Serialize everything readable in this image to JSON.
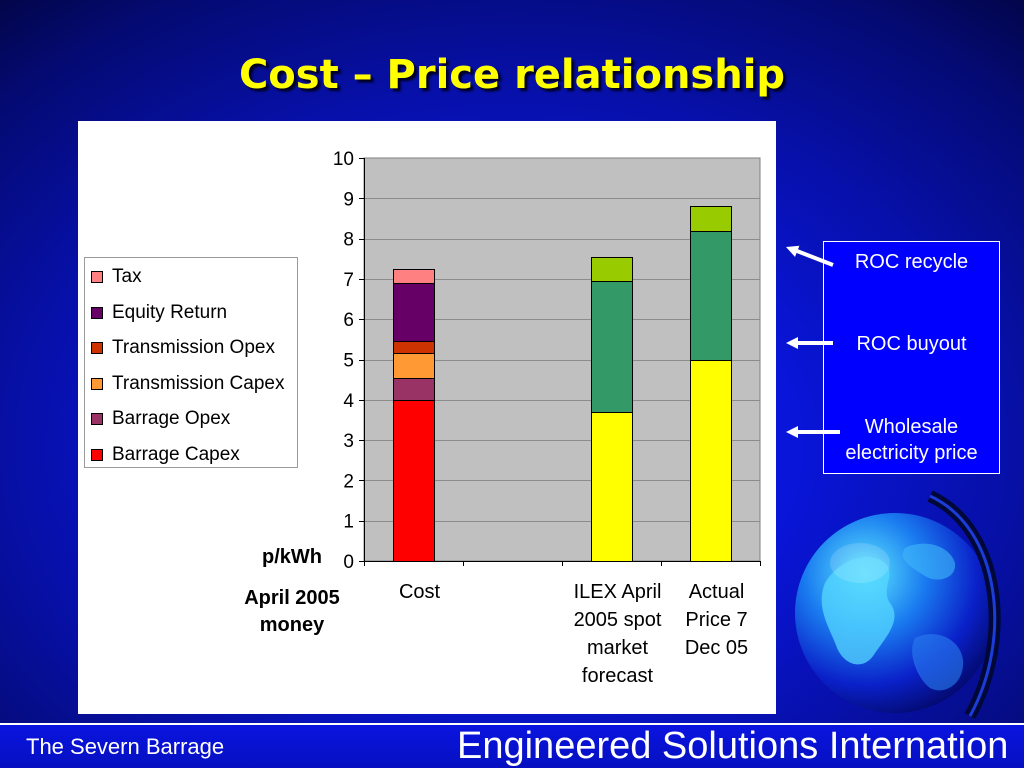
{
  "slide": {
    "title": "Cost – Price relationship",
    "footer_left": "The Severn Barrage",
    "footer_right": "Engineered Solutions Internation"
  },
  "colors": {
    "title": "#FFFF00",
    "annotation_box": "#0000FF"
  },
  "chart_data": {
    "type": "bar",
    "stacked": true,
    "categories": [
      "Cost",
      "",
      "ILEX April 2005 spot market forecast",
      "Actual Price 7 Dec 05"
    ],
    "ylim": [
      0,
      10
    ],
    "yticks": [
      0,
      1,
      2,
      3,
      4,
      5,
      6,
      7,
      8,
      9,
      10
    ],
    "ylabel": "p/kWh",
    "ylabel_note": "April 2005 money",
    "grid": true,
    "legend": "left",
    "series": [
      {
        "name": "Barrage Capex",
        "color": "#FF0000",
        "values": [
          4.0,
          null,
          null,
          null
        ],
        "in_legend": true
      },
      {
        "name": "Barrage Opex",
        "color": "#993366",
        "values": [
          0.55,
          null,
          null,
          null
        ],
        "in_legend": true
      },
      {
        "name": "Transmission Capex",
        "color": "#FF9933",
        "values": [
          0.6,
          null,
          null,
          null
        ],
        "in_legend": true
      },
      {
        "name": "Transmission Opex",
        "color": "#CC3300",
        "values": [
          0.3,
          null,
          null,
          null
        ],
        "in_legend": true
      },
      {
        "name": "Equity Return",
        "color": "#660066",
        "values": [
          1.45,
          null,
          null,
          null
        ],
        "in_legend": true
      },
      {
        "name": "Tax",
        "color": "#FF8080",
        "values": [
          0.35,
          null,
          null,
          null
        ],
        "in_legend": true
      },
      {
        "name": "Wholesale electricity price",
        "color": "#FFFF00",
        "values": [
          null,
          null,
          3.7,
          5.0
        ],
        "in_legend": false
      },
      {
        "name": "ROC buyout",
        "color": "#339966",
        "values": [
          null,
          null,
          3.25,
          3.2
        ],
        "in_legend": false
      },
      {
        "name": "ROC recycle",
        "color": "#99CC00",
        "values": [
          null,
          null,
          0.6,
          0.6
        ],
        "in_legend": false
      }
    ]
  }
}
